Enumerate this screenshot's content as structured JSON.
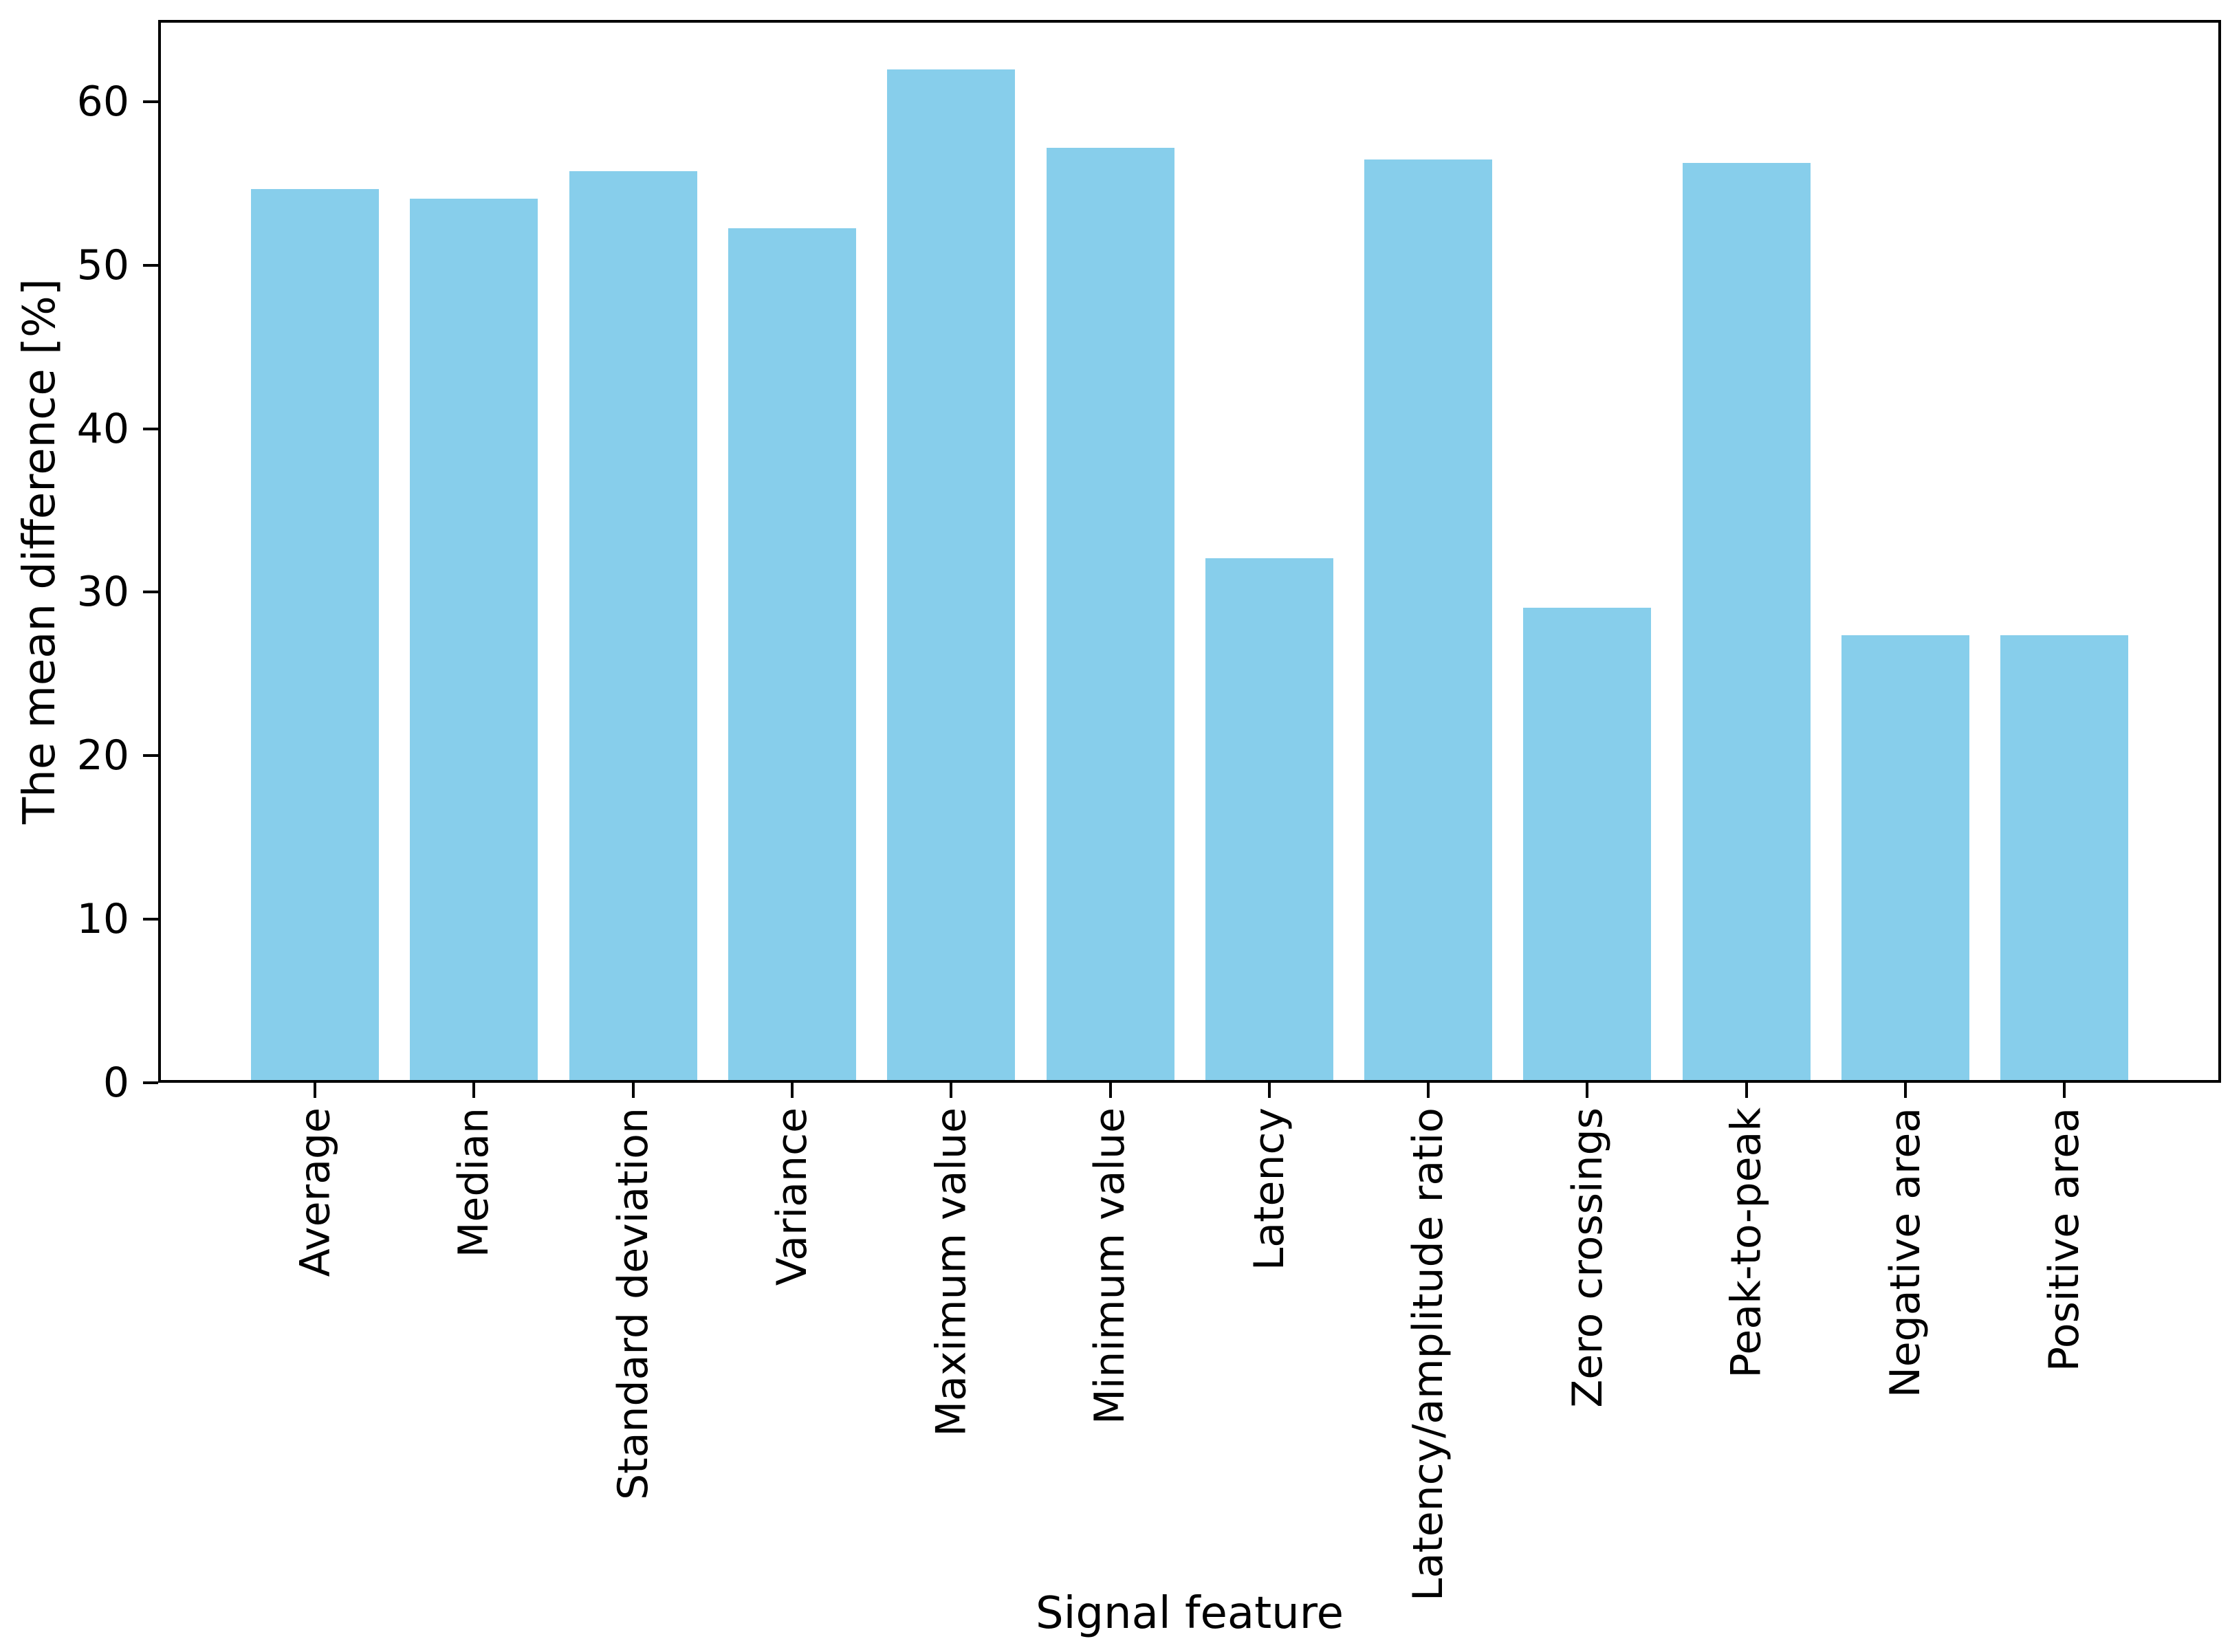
{
  "chart_data": {
    "type": "bar",
    "title": "",
    "xlabel": "Signal feature",
    "ylabel": "The mean difference [%]",
    "categories": [
      "Average",
      "Median",
      "Standard deviation",
      "Variance",
      "Maximum value",
      "Minimum value",
      "Latency",
      "Latency/amplitude ratio",
      "Zero crossings",
      "Peak-to-peak",
      "Negative area",
      "Positive area"
    ],
    "values": [
      54.5,
      53.9,
      55.6,
      52.1,
      61.8,
      57.0,
      31.9,
      56.3,
      28.9,
      56.1,
      27.2,
      27.2
    ],
    "ylim": [
      0,
      65
    ],
    "yticks": [
      0,
      10,
      20,
      30,
      40,
      50,
      60
    ],
    "bar_color": "#87CEEB",
    "axis_color": "#000000",
    "grid": false,
    "legend": null
  }
}
